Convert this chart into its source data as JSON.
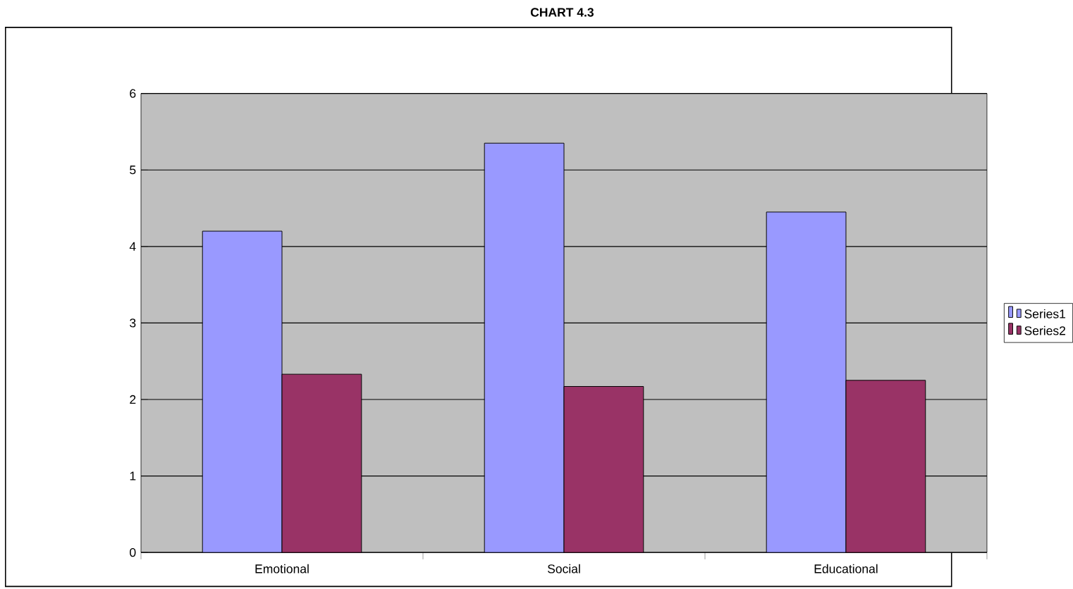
{
  "chart_data": {
    "type": "bar",
    "title": "CHART 4.3",
    "categories": [
      "Emotional",
      "Social",
      "Educational"
    ],
    "series": [
      {
        "name": "Series1",
        "color": "#9999ff",
        "values": [
          4.2,
          5.35,
          4.45
        ]
      },
      {
        "name": "Series2",
        "color": "#993366",
        "values": [
          2.33,
          2.17,
          2.25
        ]
      }
    ],
    "ylim": [
      0,
      6
    ],
    "yticks": [
      0,
      1,
      2,
      3,
      4,
      5,
      6
    ],
    "grid": "y",
    "legend": "right"
  }
}
